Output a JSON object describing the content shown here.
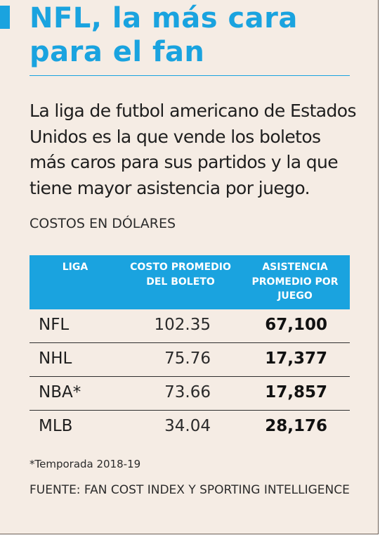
{
  "header": {
    "title": "NFL, la más cara para el fan",
    "lead": "La liga de futbol americano de Estados Unidos es la que vende los boletos más caros para sus partidos y la que tiene mayor asistencia por juego.",
    "subhead": "COSTOS EN DÓLARES"
  },
  "colors": {
    "accent": "#1aa3df",
    "background": "#f5ece4",
    "text": "#1e1e1e"
  },
  "chart_data": {
    "type": "table",
    "title": "NFL, la más cara para el fan",
    "subtitle": "COSTOS EN DÓLARES",
    "columns": [
      "LIGA",
      "COSTO PROMEDIO DEL BOLETO",
      "ASISTENCIA PROMEDIO POR JUEGO"
    ],
    "rows": [
      {
        "league": "NFL",
        "cost": "102.35",
        "attendance": "67,100"
      },
      {
        "league": "NHL",
        "cost": "75.76",
        "attendance": "17,377"
      },
      {
        "league": "NBA*",
        "cost": "73.66",
        "attendance": "17,857"
      },
      {
        "league": "MLB",
        "cost": "34.04",
        "attendance": "28,176"
      }
    ],
    "footnote": "*Temporada 2018-19",
    "source": "FUENTE: FAN COST INDEX Y SPORTING INTELLIGENCE"
  }
}
